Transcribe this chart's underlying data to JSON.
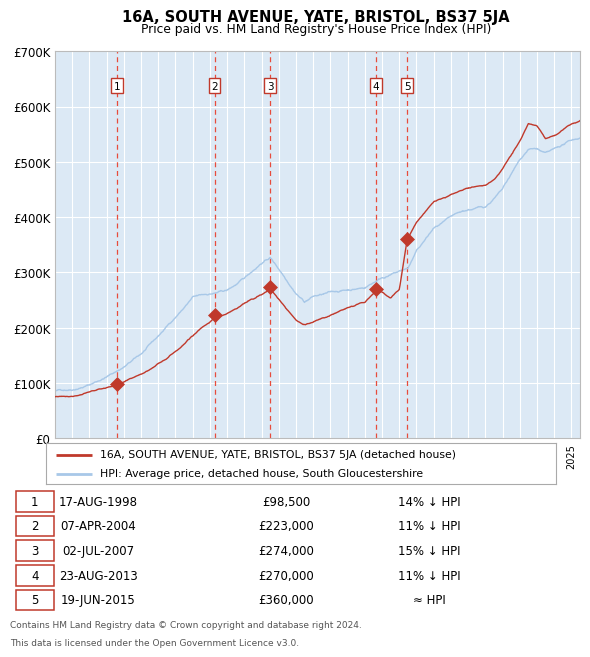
{
  "title": "16A, SOUTH AVENUE, YATE, BRISTOL, BS37 5JA",
  "subtitle": "Price paid vs. HM Land Registry's House Price Index (HPI)",
  "background_color": "#dce9f5",
  "hpi_line_color": "#a8c8e8",
  "price_line_color": "#c0392b",
  "marker_color": "#c0392b",
  "vline_color": "#e74c3c",
  "ylim": [
    0,
    700000
  ],
  "yticks": [
    0,
    100000,
    200000,
    300000,
    400000,
    500000,
    600000,
    700000
  ],
  "ytick_labels": [
    "£0",
    "£100K",
    "£200K",
    "£300K",
    "£400K",
    "£500K",
    "£600K",
    "£700K"
  ],
  "sales": [
    {
      "num": 1,
      "date_x": 1998.62,
      "price": 98500
    },
    {
      "num": 2,
      "date_x": 2004.27,
      "price": 223000
    },
    {
      "num": 3,
      "date_x": 2007.5,
      "price": 274000
    },
    {
      "num": 4,
      "date_x": 2013.64,
      "price": 270000
    },
    {
      "num": 5,
      "date_x": 2015.46,
      "price": 360000
    }
  ],
  "table_rows": [
    {
      "num": 1,
      "date": "17-AUG-1998",
      "price": "£98,500",
      "hpi": "14% ↓ HPI"
    },
    {
      "num": 2,
      "date": "07-APR-2004",
      "price": "£223,000",
      "hpi": "11% ↓ HPI"
    },
    {
      "num": 3,
      "date": "02-JUL-2007",
      "price": "£274,000",
      "hpi": "15% ↓ HPI"
    },
    {
      "num": 4,
      "date": "23-AUG-2013",
      "price": "£270,000",
      "hpi": "11% ↓ HPI"
    },
    {
      "num": 5,
      "date": "19-JUN-2015",
      "price": "£360,000",
      "hpi": "≈ HPI"
    }
  ],
  "legend_label_price": "16A, SOUTH AVENUE, YATE, BRISTOL, BS37 5JA (detached house)",
  "legend_label_hpi": "HPI: Average price, detached house, South Gloucestershire",
  "footnote1": "Contains HM Land Registry data © Crown copyright and database right 2024.",
  "footnote2": "This data is licensed under the Open Government Licence v3.0.",
  "xmin": 1995,
  "xmax": 2025.5
}
